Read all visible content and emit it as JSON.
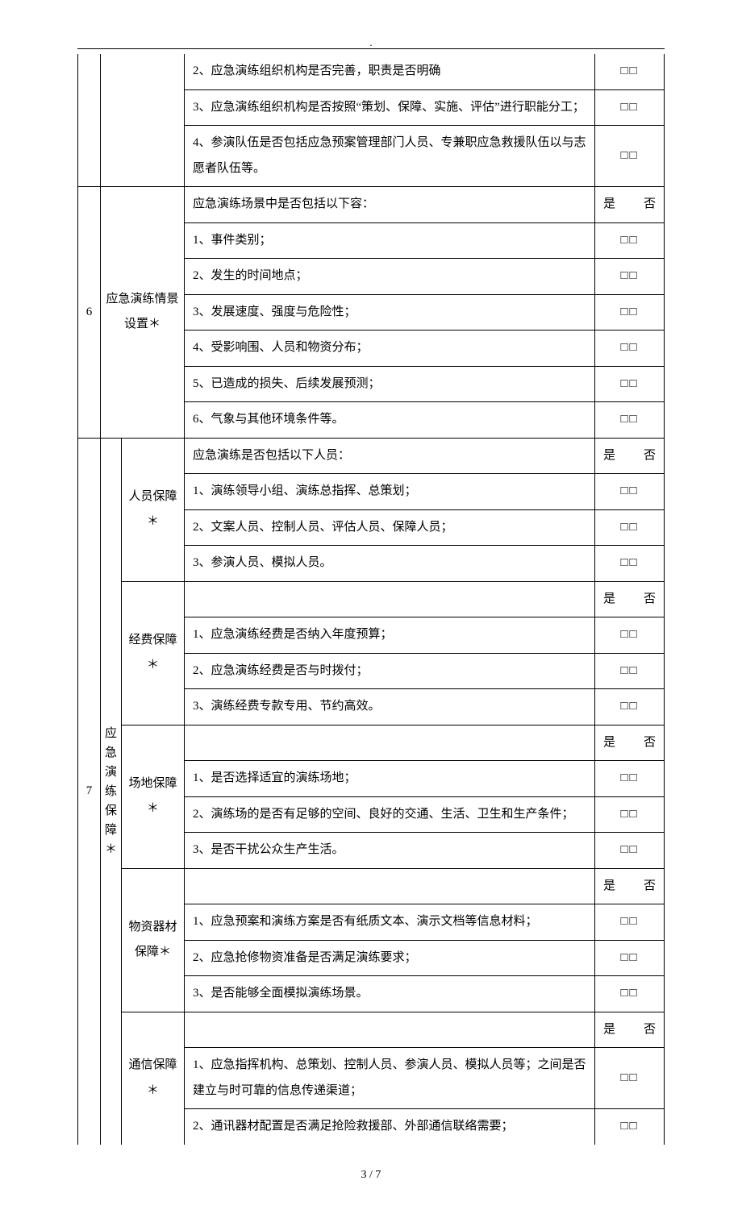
{
  "page": {
    "footer": "3 / 7",
    "top_dot": "."
  },
  "labels": {
    "yes": "是",
    "no": "否",
    "box_pair": "□□"
  },
  "section_top": {
    "items": [
      "2、应急演练组织机构是否完善，职责是否明确",
      "3、应急演练组织机构是否按照“策划、保障、实施、评估”进行职能分工；",
      "4、参演队伍是否包括应急预案管理部门人员、专兼职应急救援队伍以与志愿者队伍等。"
    ]
  },
  "row6": {
    "num": "6",
    "title": "应急演练情景设置＊",
    "lead": "应急演练场景中是否包括以下容：",
    "items": [
      "1、事件类别；",
      "2、发生的时间地点；",
      "3、发展速度、强度与危险性；",
      "4、受影响围、人员和物资分布；",
      "5、已造成的损失、后续发展预测；",
      "6、气象与其他环境条件等。"
    ]
  },
  "row7": {
    "num": "7",
    "cat": "应急演练保障＊",
    "groups": [
      {
        "title": "人员保障＊",
        "lead": "应急演练是否包括以下人员：",
        "items": [
          "1、演练领导小组、演练总指挥、总策划；",
          "2、文案人员、控制人员、评估人员、保障人员；",
          "3、参演人员、模拟人员。"
        ]
      },
      {
        "title": "经费保障＊",
        "lead": "",
        "items": [
          "1、应急演练经费是否纳入年度预算；",
          "2、应急演练经费是否与时拨付；",
          "3、演练经费专款专用、节约高效。"
        ]
      },
      {
        "title": "场地保障＊",
        "lead": "",
        "items": [
          "1、是否选择适宜的演练场地；",
          "2、演练场的是否有足够的空间、良好的交通、生活、卫生和生产条件；",
          "3、是否干扰公众生产生活。"
        ]
      },
      {
        "title": "物资器材保障＊",
        "lead": "",
        "items": [
          "1、应急预案和演练方案是否有纸质文本、演示文档等信息材料；",
          "2、应急抢修物资准备是否满足演练要求；",
          "3、是否能够全面模拟演练场景。"
        ]
      },
      {
        "title": "通信保障＊",
        "lead": "",
        "items": [
          "1、应急指挥机构、总策划、控制人员、参演人员、模拟人员等；之间是否建立与时可靠的信息传递渠道；",
          "2、通讯器材配置是否满足抢险救援部、外部通信联络需要；"
        ]
      }
    ]
  }
}
